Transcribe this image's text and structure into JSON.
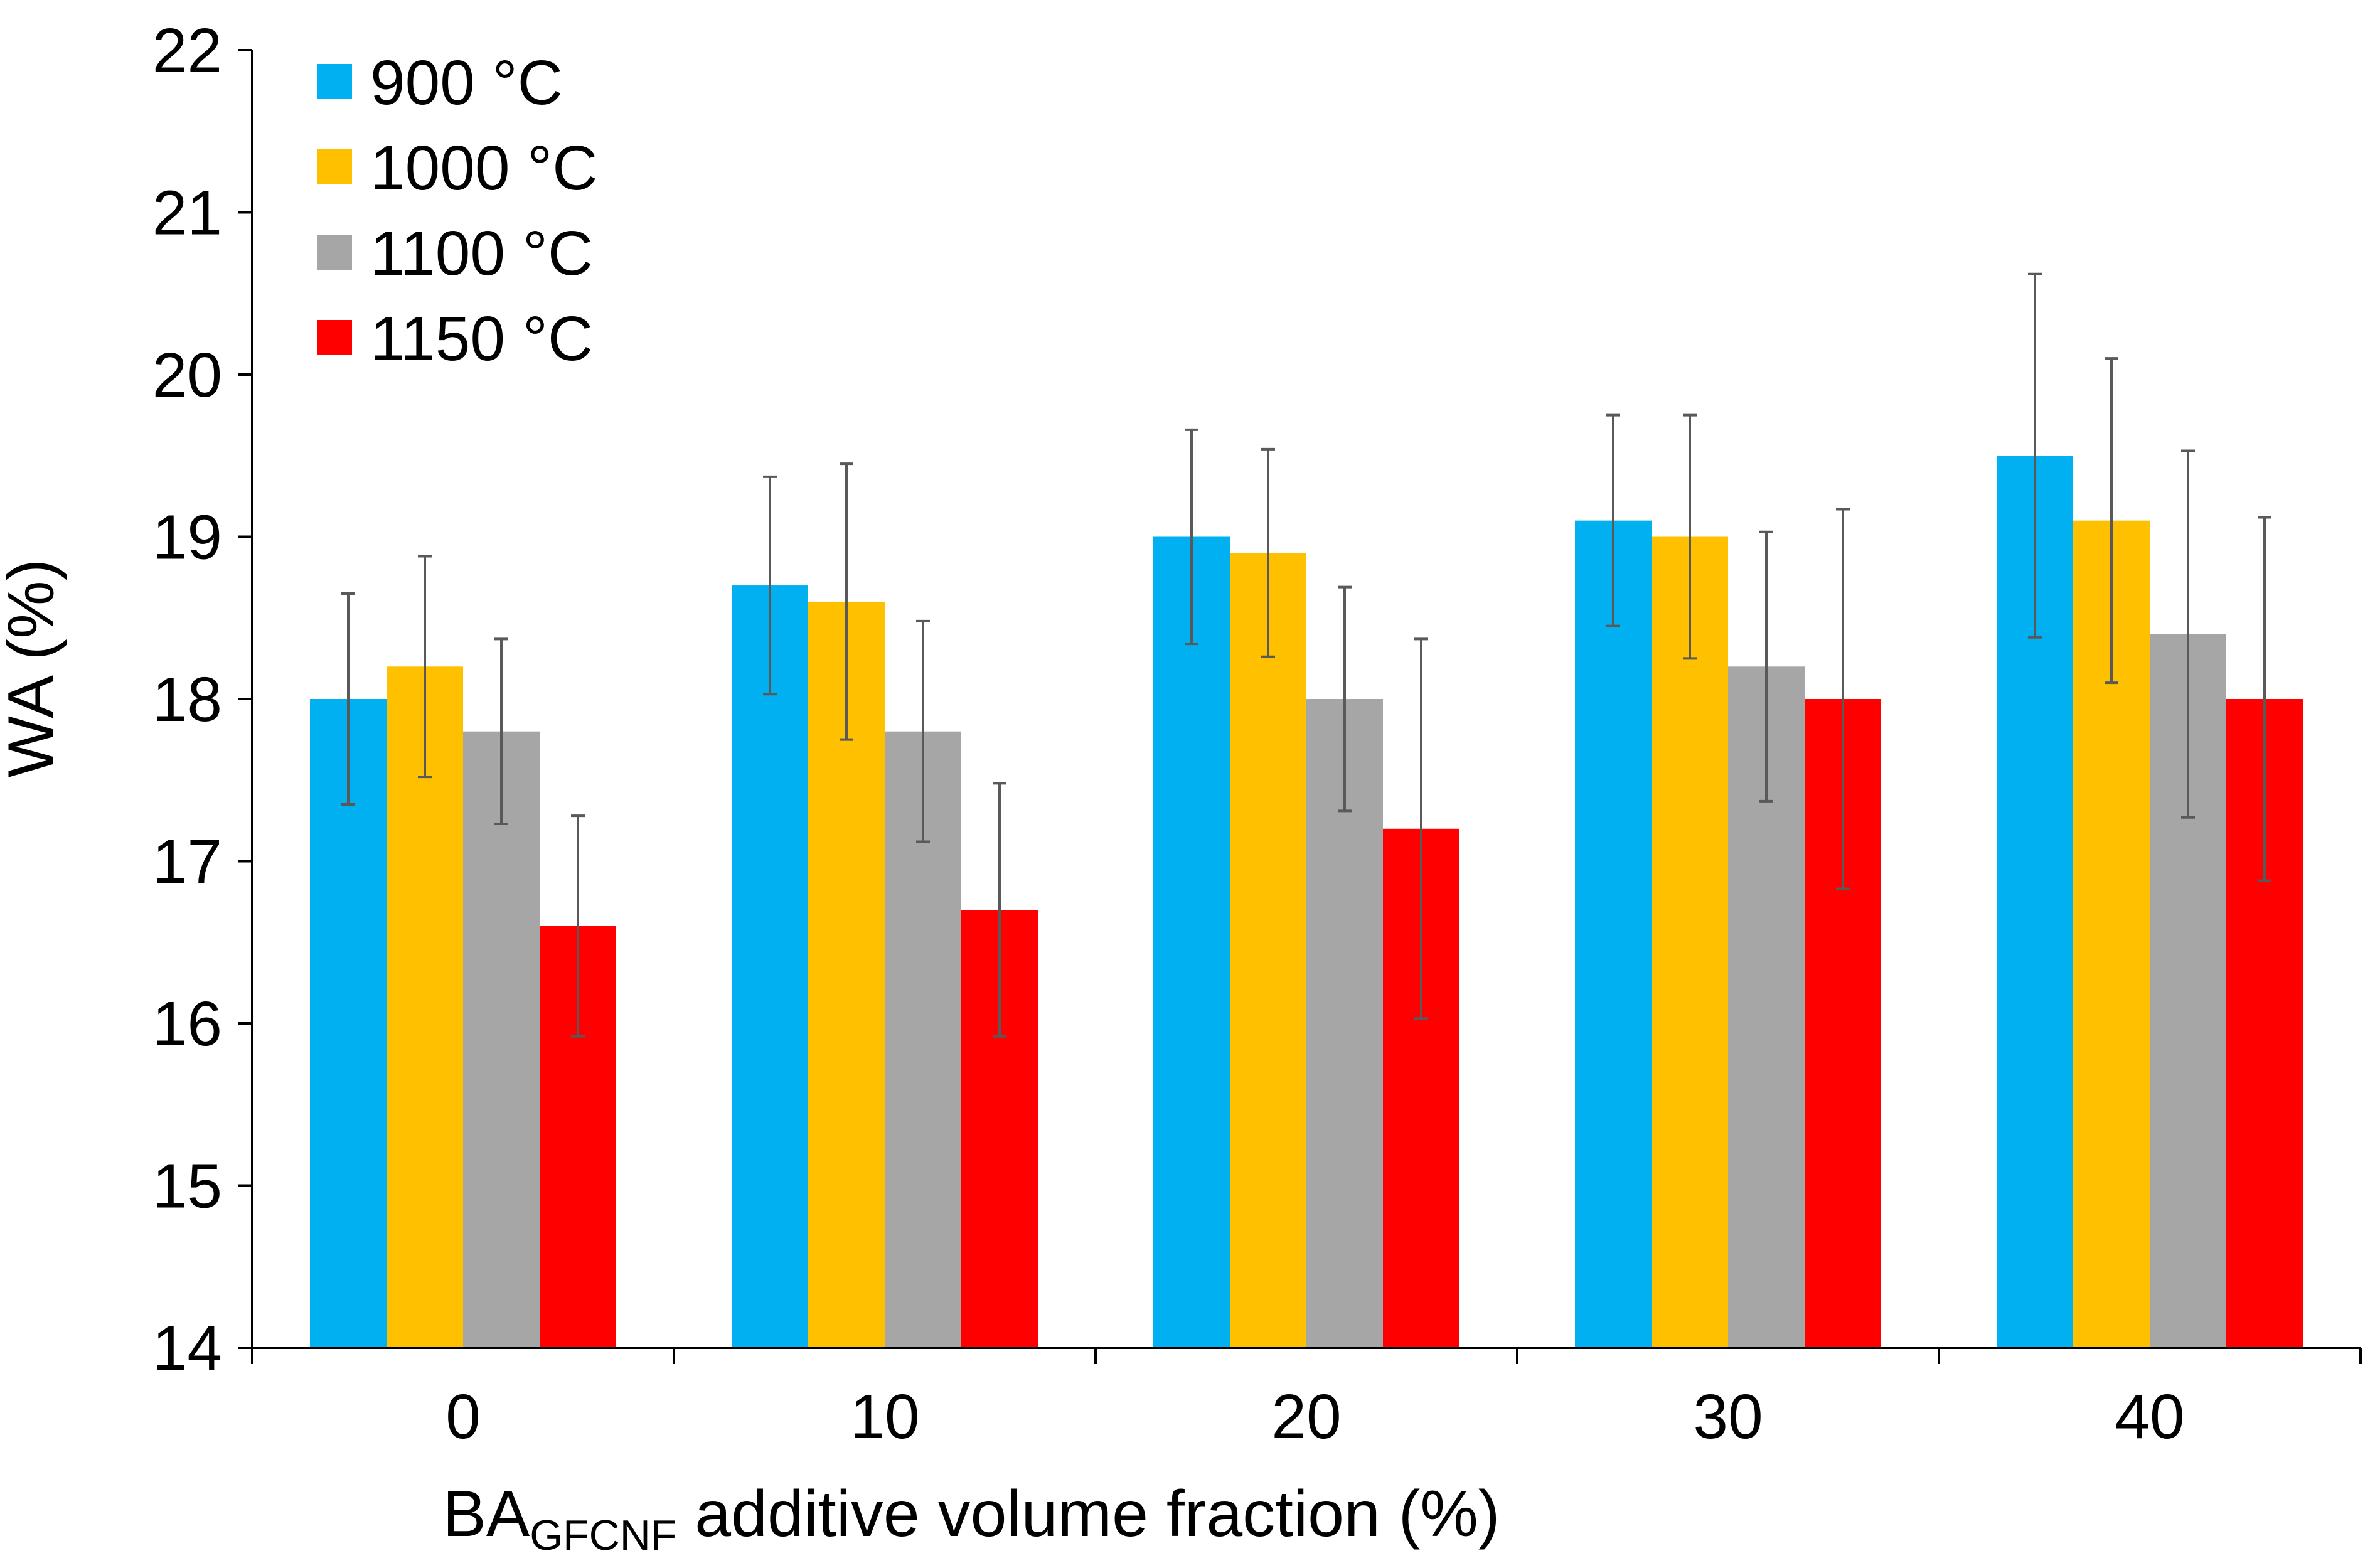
{
  "chart_data": {
    "type": "bar",
    "title": "",
    "xlabel": {
      "main": "BA",
      "subscript": "GFCNF",
      "rest": " additive volume fraction (%)"
    },
    "ylabel": "WA (%)",
    "ylim": [
      14,
      22
    ],
    "yticks": [
      "14",
      "15",
      "16",
      "17",
      "18",
      "19",
      "20",
      "21",
      "22"
    ],
    "categories": [
      "0",
      "10",
      "20",
      "30",
      "40"
    ],
    "legend_position": "top-left",
    "series": [
      {
        "name": "900 °C",
        "color": "#00B0F0",
        "values": [
          18.0,
          18.7,
          19.0,
          19.1,
          19.5
        ],
        "errors": [
          0.65,
          0.67,
          0.66,
          0.65,
          1.12
        ]
      },
      {
        "name": "1000 °C",
        "color": "#FFC000",
        "values": [
          18.2,
          18.6,
          18.9,
          19.0,
          19.1
        ],
        "errors": [
          0.68,
          0.85,
          0.64,
          0.75,
          1.0
        ]
      },
      {
        "name": "1100 °C",
        "color": "#A6A6A6",
        "values": [
          17.8,
          17.8,
          18.0,
          18.2,
          18.4
        ],
        "errors": [
          0.57,
          0.68,
          0.69,
          0.83,
          1.13
        ]
      },
      {
        "name": "1150 °C",
        "color": "#FF0000",
        "values": [
          16.6,
          16.7,
          17.2,
          18.0,
          18.0
        ],
        "errors": [
          0.68,
          0.78,
          1.17,
          1.17,
          1.12
        ]
      }
    ]
  }
}
